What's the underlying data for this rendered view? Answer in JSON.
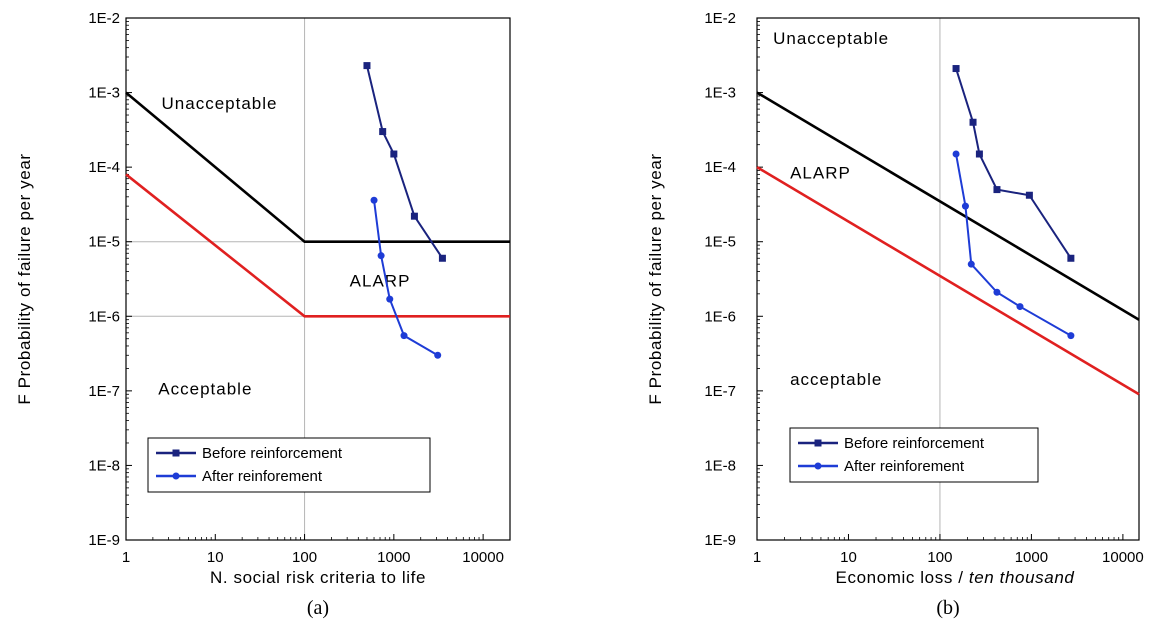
{
  "chart_data": [
    {
      "type": "line",
      "panel_label": "(a)",
      "xlabel": "N. social risk criteria to life",
      "xlabel_italic": "",
      "ylabel": "F  Probability of failure per year",
      "x_scale": "log",
      "y_scale": "log",
      "xlim": [
        1,
        20000
      ],
      "ylim": [
        1e-09,
        0.01
      ],
      "x_ticks": [
        1,
        10,
        100,
        1000,
        10000
      ],
      "x_tick_labels": [
        "1",
        "10",
        "100",
        "1000",
        "10000"
      ],
      "y_ticks": [
        1e-09,
        1e-08,
        1e-07,
        1e-06,
        1e-05,
        0.0001,
        0.001,
        0.01
      ],
      "y_tick_labels": [
        "1E-9",
        "1E-8",
        "1E-7",
        "1E-6",
        "1E-5",
        "1E-4",
        "1E-3",
        "1E-2"
      ],
      "grid": {
        "x": [
          100
        ],
        "y": [
          1e-05,
          1e-06
        ]
      },
      "criteria_lines": [
        {
          "color": "#000000",
          "points": [
            [
              1,
              0.001
            ],
            [
              100,
              1e-05
            ],
            [
              20000,
              1e-05
            ]
          ]
        },
        {
          "color": "#e02020",
          "points": [
            [
              1,
              8e-05
            ],
            [
              100,
              1e-06
            ],
            [
              20000,
              1e-06
            ]
          ]
        }
      ],
      "regions": [
        {
          "text": "Unacceptable",
          "x": 2.5,
          "y": 0.0006
        },
        {
          "text": "ALARP",
          "x": 320,
          "y": 2.5e-06
        },
        {
          "text": "Acceptable",
          "x": 2.3,
          "y": 9e-08
        }
      ],
      "series": [
        {
          "name": "Before reinforcement",
          "color": "#1a237e",
          "marker": "square",
          "points": [
            [
              500,
              0.0023
            ],
            [
              750,
              0.0003
            ],
            [
              1000,
              0.00015
            ],
            [
              1700,
              2.2e-05
            ],
            [
              3500,
              6e-06
            ]
          ]
        },
        {
          "name": "After reinforement",
          "color": "#1e3cd6",
          "marker": "circle",
          "points": [
            [
              600,
              3.6e-05
            ],
            [
              720,
              6.5e-06
            ],
            [
              900,
              1.7e-06
            ],
            [
              1300,
              5.5e-07
            ],
            [
              3100,
              3e-07
            ]
          ]
        }
      ],
      "legend": "lower-middle"
    },
    {
      "type": "line",
      "panel_label": "(b)",
      "xlabel": "Economic loss / ",
      "xlabel_italic": "ten thousand",
      "ylabel": "F  Probability of failure per year",
      "x_scale": "log",
      "y_scale": "log",
      "xlim": [
        1,
        15000
      ],
      "ylim": [
        1e-09,
        0.01
      ],
      "x_ticks": [
        1,
        10,
        100,
        1000,
        10000
      ],
      "x_tick_labels": [
        "1",
        "10",
        "100",
        "1000",
        "10000"
      ],
      "y_ticks": [
        1e-09,
        1e-08,
        1e-07,
        1e-06,
        1e-05,
        0.0001,
        0.001,
        0.01
      ],
      "y_tick_labels": [
        "1E-9",
        "1E-8",
        "1E-7",
        "1E-6",
        "1E-5",
        "1E-4",
        "1E-3",
        "1E-2"
      ],
      "grid": {
        "x": [
          100
        ],
        "y": []
      },
      "criteria_lines": [
        {
          "color": "#000000",
          "points": [
            [
              1,
              0.001
            ],
            [
              15000,
              9e-07
            ]
          ]
        },
        {
          "color": "#e02020",
          "points": [
            [
              1,
              0.0001
            ],
            [
              15000,
              9e-08
            ]
          ]
        }
      ],
      "regions": [
        {
          "text": "Unacceptable",
          "x": 1.5,
          "y": 0.0045
        },
        {
          "text": "ALARP",
          "x": 2.3,
          "y": 7e-05
        },
        {
          "text": "acceptable",
          "x": 2.3,
          "y": 1.2e-07
        }
      ],
      "series": [
        {
          "name": "Before reinforcement",
          "color": "#1a237e",
          "marker": "square",
          "points": [
            [
              150,
              0.0021
            ],
            [
              230,
              0.0004
            ],
            [
              270,
              0.00015
            ],
            [
              420,
              5e-05
            ],
            [
              950,
              4.2e-05
            ],
            [
              2700,
              6e-06
            ]
          ]
        },
        {
          "name": "After reinforement",
          "color": "#1e3cd6",
          "marker": "circle",
          "points": [
            [
              150,
              0.00015
            ],
            [
              190,
              3e-05
            ],
            [
              220,
              5e-06
            ],
            [
              420,
              2.1e-06
            ],
            [
              750,
              1.35e-06
            ],
            [
              2700,
              5.5e-07
            ]
          ]
        }
      ],
      "legend": "lower-middle"
    }
  ]
}
